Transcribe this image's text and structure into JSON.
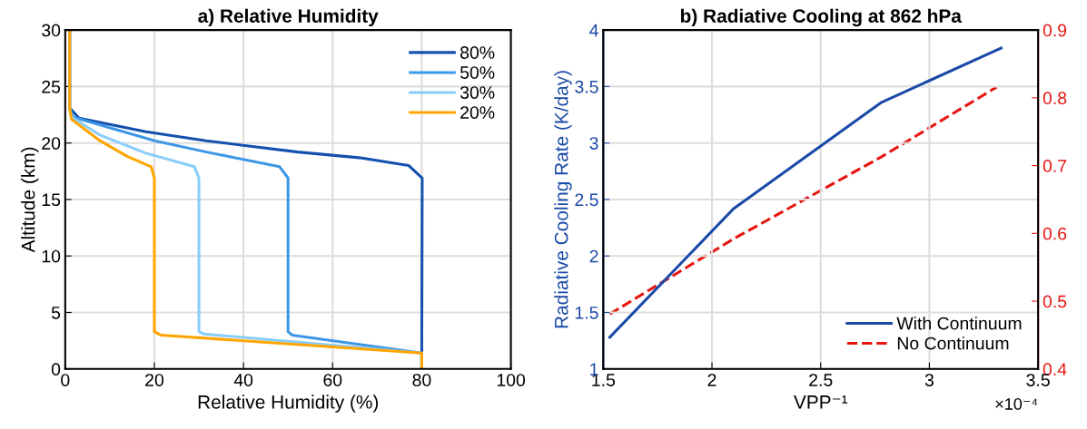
{
  "chart_data": [
    {
      "type": "line",
      "title": "a) Relative Humidity",
      "xlabel": "Relative Humidity (%)",
      "ylabel": "Altitude (km)",
      "xlim": [
        0,
        100
      ],
      "ylim": [
        0,
        30
      ],
      "xticks": [
        0,
        20,
        40,
        60,
        80,
        100
      ],
      "yticks": [
        0,
        5,
        10,
        15,
        20,
        25,
        30
      ],
      "grid": true,
      "legend": "top right",
      "series": [
        {
          "name": "80%",
          "color": "#1450ae",
          "x": [
            1.0,
            1.0,
            3.1,
            18.1,
            31.7,
            39.9,
            52.2,
            65.9,
            77.1,
            80.1,
            80.0,
            80.0
          ],
          "values": [
            30,
            23.1,
            22.2,
            21.0,
            20.2,
            19.8,
            19.2,
            18.7,
            18.0,
            16.9,
            1.4,
            0
          ]
        },
        {
          "name": "50%",
          "color": "#3d97e6",
          "x": [
            1.0,
            1.0,
            1.7,
            20.1,
            31.7,
            48.1,
            50.0,
            50.0,
            50.9,
            80.0,
            80.0
          ],
          "values": [
            30,
            23.1,
            22.3,
            20.2,
            19.2,
            17.9,
            16.9,
            3.3,
            3.0,
            1.4,
            0
          ]
        },
        {
          "name": "30%",
          "color": "#87cefa",
          "x": [
            1.0,
            1.0,
            1.4,
            7.8,
            18.1,
            29.0,
            30.0,
            30.0,
            31.1,
            80.0,
            80.0
          ],
          "values": [
            30,
            23.1,
            22.3,
            20.7,
            19.1,
            17.9,
            16.9,
            3.3,
            3.1,
            1.4,
            0
          ]
        },
        {
          "name": "20%",
          "color": "#ffa500",
          "x": [
            1.0,
            1.0,
            1.4,
            7.8,
            14.0,
            19.3,
            20.0,
            20.0,
            21.4,
            80.0,
            80.0
          ],
          "values": [
            30,
            23.1,
            22.1,
            20.2,
            18.8,
            17.9,
            16.9,
            3.3,
            3.0,
            1.4,
            0
          ]
        }
      ]
    },
    {
      "type": "line",
      "title": "b) Radiative Cooling at 862 hPa",
      "xlabel": "VPP⁻¹",
      "ylabel": "Radiative Cooling Rate (K/day)",
      "annotations": [
        "×10⁻⁴"
      ],
      "xlim": [
        1.5,
        3.5
      ],
      "ylim": [
        1,
        4
      ],
      "y2lim": [
        0.4,
        0.9
      ],
      "xticks": [
        1.5,
        2,
        2.5,
        3,
        3.5
      ],
      "yticks": [
        1,
        1.5,
        2,
        2.5,
        3,
        3.5,
        4
      ],
      "y2ticks": [
        0.4,
        0.5,
        0.6,
        0.7,
        0.8,
        0.9
      ],
      "grid": true,
      "legend": "bottom right",
      "series": [
        {
          "name": "With Continuum",
          "color": "#1a4aa8",
          "line_style": "solid",
          "x": [
            1.53,
            2.1,
            2.78,
            3.33
          ],
          "values": [
            1.28,
            2.42,
            3.36,
            3.84
          ]
        },
        {
          "name": "No Continuum",
          "color": "#e8150f",
          "line_style": "dashed",
          "axis": "y2",
          "x": [
            1.53,
            2.1,
            2.78,
            3.31
          ],
          "values": [
            0.481,
            0.592,
            0.713,
            0.816
          ]
        }
      ]
    }
  ]
}
